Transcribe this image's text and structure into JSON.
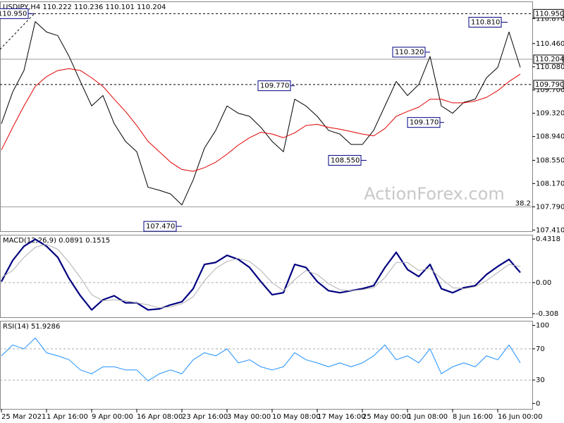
{
  "chart_data": [
    {
      "type": "line",
      "title": "USDJPY,H4  110.222 110.236 110.101 110.204",
      "watermark": "ActionForex.com",
      "categories": [
        "25 Mar 2021",
        null,
        null,
        null,
        "1 Apr 16:00",
        null,
        null,
        null,
        "9 Apr 00:00",
        null,
        null,
        null,
        "16 Apr 08:00",
        null,
        null,
        null,
        "23 Apr 16:00",
        null,
        null,
        null,
        "3 May 00:00",
        null,
        null,
        null,
        "10 May 08:00",
        null,
        null,
        null,
        "17 May 16:00",
        null,
        null,
        null,
        "25 May 00:00",
        null,
        null,
        null,
        "1 Jun 08:00",
        null,
        null,
        null,
        "8 Jun 16:00",
        null,
        null,
        null,
        "16 Jun 00:00",
        null,
        null
      ],
      "series": [
        {
          "color": "#000000",
          "line_width": 1,
          "values": [
            109.15,
            109.67,
            110.02,
            110.82,
            110.65,
            110.59,
            110.25,
            109.84,
            109.44,
            109.61,
            109.15,
            108.86,
            108.69,
            108.11,
            108.06,
            108.0,
            107.82,
            108.23,
            108.75,
            109.04,
            109.44,
            109.32,
            109.27,
            109.09,
            108.86,
            108.69,
            109.55,
            109.44,
            109.27,
            109.04,
            108.98,
            108.81,
            108.81,
            109.04,
            109.44,
            109.84,
            109.61,
            109.79,
            110.25,
            109.44,
            109.32,
            109.5,
            109.55,
            109.9,
            110.07,
            110.65,
            110.07
          ]
        },
        {
          "color": "#e00000",
          "line_width": 1,
          "values": [
            108.72,
            109.09,
            109.44,
            109.76,
            109.92,
            110.02,
            110.05,
            110.02,
            109.9,
            109.76,
            109.55,
            109.35,
            109.12,
            108.86,
            108.69,
            108.52,
            108.4,
            108.37,
            108.43,
            108.52,
            108.65,
            108.8,
            108.92,
            109.01,
            108.98,
            108.92,
            109.0,
            109.12,
            109.14,
            109.09,
            109.06,
            109.02,
            108.98,
            108.95,
            109.07,
            109.27,
            109.35,
            109.42,
            109.55,
            109.55,
            109.49,
            109.49,
            109.52,
            109.58,
            109.69,
            109.84,
            109.96
          ]
        }
      ],
      "ylim": [
        107.39,
        111.15
      ],
      "yticks": [
        {
          "value": 110.87,
          "label": "110.870"
        },
        {
          "value": 110.46,
          "label": "110.460"
        },
        {
          "value": 110.08,
          "label": "110.080"
        },
        {
          "value": 109.7,
          "label": "109.700"
        },
        {
          "value": 109.32,
          "label": "109.320"
        },
        {
          "value": 108.94,
          "label": "108.940"
        },
        {
          "value": 108.55,
          "label": "108.550"
        },
        {
          "value": 108.17,
          "label": "108.170"
        },
        {
          "value": 107.79,
          "label": "107.790"
        },
        {
          "value": 107.41,
          "label": "107.410"
        }
      ],
      "levels": [
        {
          "value": 110.95,
          "label": "110.950",
          "style": "dashed",
          "boxed": true
        },
        {
          "value": 110.204,
          "label": "110.204",
          "style": "solid",
          "boxed": true
        },
        {
          "value": 109.79,
          "label": "109.790",
          "style": "dashed",
          "boxed": true
        },
        {
          "value": 107.79,
          "label": "38.2",
          "style": "solid",
          "boxed": false
        }
      ],
      "annotations": [
        {
          "value": 110.95,
          "label": "110.950"
        },
        {
          "value": 110.81,
          "label": "110.810"
        },
        {
          "value": 110.32,
          "label": "110.320"
        },
        {
          "value": 109.77,
          "label": "109.770"
        },
        {
          "value": 109.17,
          "label": "109.170"
        },
        {
          "value": 108.55,
          "label": "108.550"
        },
        {
          "value": 107.47,
          "label": "107.470"
        }
      ]
    },
    {
      "type": "line",
      "title": "MACD(12,26,9) 0.0891 0.1515",
      "series": [
        {
          "color": "#000080",
          "line_width": 2.2,
          "values": [
            0.01,
            0.22,
            0.36,
            0.43,
            0.36,
            0.25,
            0.04,
            -0.13,
            -0.27,
            -0.17,
            -0.13,
            -0.2,
            -0.2,
            -0.27,
            -0.26,
            -0.22,
            -0.19,
            -0.06,
            0.18,
            0.2,
            0.27,
            0.23,
            0.15,
            0.01,
            -0.12,
            -0.1,
            0.18,
            0.15,
            0.01,
            -0.08,
            -0.1,
            -0.08,
            -0.06,
            -0.03,
            0.15,
            0.3,
            0.13,
            0.06,
            0.18,
            -0.06,
            -0.1,
            -0.05,
            -0.03,
            0.08,
            0.16,
            0.23,
            0.1
          ]
        },
        {
          "color": "#b0b0b0",
          "line_width": 1,
          "values": [
            0.05,
            0.12,
            0.25,
            0.35,
            0.38,
            0.33,
            0.2,
            0.05,
            -0.12,
            -0.18,
            -0.17,
            -0.18,
            -0.2,
            -0.22,
            -0.25,
            -0.24,
            -0.21,
            -0.14,
            0.02,
            0.14,
            0.21,
            0.24,
            0.21,
            0.12,
            0.0,
            -0.08,
            0.03,
            0.12,
            0.08,
            -0.01,
            -0.07,
            -0.08,
            -0.07,
            -0.05,
            0.05,
            0.2,
            0.2,
            0.12,
            0.14,
            0.04,
            -0.05,
            -0.06,
            -0.04,
            0.02,
            0.1,
            0.18,
            0.16
          ]
        }
      ],
      "ylim": [
        -0.343,
        0.474
      ],
      "yticks": [
        0.4318,
        {
          "value": 0,
          "label": "0.00"
        },
        -0.308
      ],
      "dashed_levels": [
        0
      ]
    },
    {
      "type": "line",
      "title": "RSI(14) 51.9286",
      "series": [
        {
          "color": "#1e90ff",
          "line_width": 1,
          "values": [
            61,
            75,
            70,
            84,
            65,
            61,
            56,
            43,
            38,
            47,
            47,
            43,
            43,
            29,
            38,
            43,
            38,
            56,
            65,
            61,
            70,
            52,
            56,
            47,
            43,
            47,
            65,
            56,
            52,
            47,
            52,
            47,
            52,
            61,
            75,
            56,
            61,
            52,
            70,
            38,
            47,
            52,
            47,
            61,
            56,
            75,
            52
          ]
        }
      ],
      "ylim": [
        -7,
        106
      ],
      "yticks": [
        100,
        70,
        30,
        0
      ],
      "dashed_levels": [
        70,
        30
      ]
    }
  ]
}
